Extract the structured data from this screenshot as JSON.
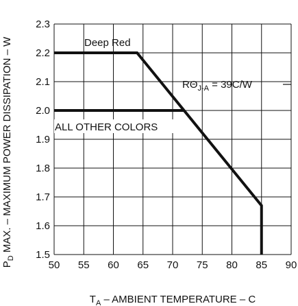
{
  "chart_data": {
    "type": "line",
    "x_axis": {
      "label_prefix": "T",
      "label_sub": "A",
      "label_rest": " – AMBIENT TEMPERATURE – C",
      "range": [
        50,
        90
      ],
      "ticks": [
        "50",
        "55",
        "60",
        "65",
        "70",
        "75",
        "80",
        "85",
        "90"
      ]
    },
    "y_axis": {
      "label_prefix": "P",
      "label_sub": "D",
      "label_rest": " MAX. – MAXIMUM POWER DISSIPATION – W",
      "range": [
        1.5,
        2.3
      ],
      "ticks": [
        "1.5",
        "1.6",
        "1.7",
        "1.8",
        "1.9",
        "2.0",
        "2.1",
        "2.2",
        "2.3"
      ]
    },
    "grid": true,
    "series": [
      {
        "name": "Deep Red",
        "x": [
          50,
          64,
          85,
          85
        ],
        "y": [
          2.2,
          2.2,
          1.67,
          1.5
        ]
      },
      {
        "name": "ALL OTHER COLORS",
        "x": [
          50,
          71.9
        ],
        "y": [
          2.0,
          2.0
        ]
      }
    ],
    "annotation": {
      "prefix": "RΘ",
      "sub": "J-A",
      "rest": " = 39C/W"
    }
  }
}
